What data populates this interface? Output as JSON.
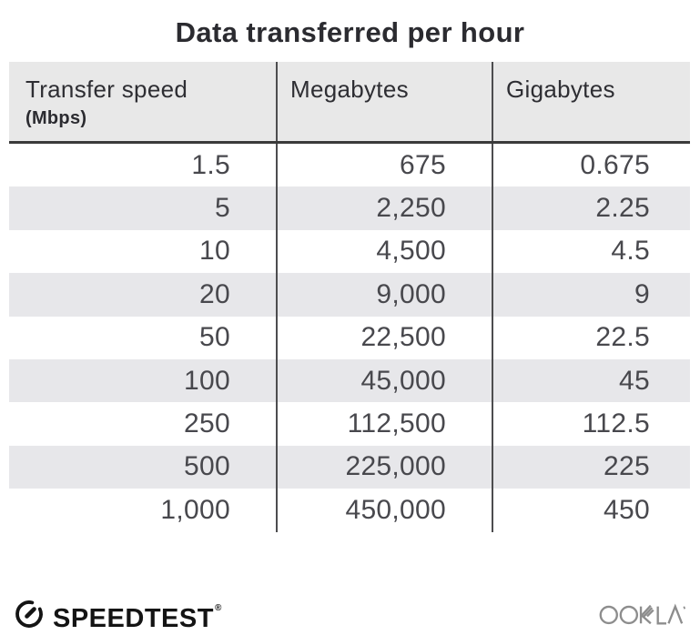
{
  "title": "Data transferred per hour",
  "table": {
    "columns": [
      {
        "label": "Transfer speed",
        "sublabel": "(Mbps)"
      },
      {
        "label": "Megabytes"
      },
      {
        "label": "Gigabytes"
      }
    ],
    "rows": [
      [
        "1.5",
        "675",
        "0.675"
      ],
      [
        "5",
        "2,250",
        "2.25"
      ],
      [
        "10",
        "4,500",
        "4.5"
      ],
      [
        "20",
        "9,000",
        "9"
      ],
      [
        "50",
        "22,500",
        "22.5"
      ],
      [
        "100",
        "45,000",
        "45"
      ],
      [
        "250",
        "112,500",
        "112.5"
      ],
      [
        "500",
        "225,000",
        "225"
      ],
      [
        "1,000",
        "450,000",
        "450"
      ]
    ]
  },
  "chart_data": {
    "type": "table",
    "title": "Data transferred per hour",
    "columns": [
      "Transfer speed (Mbps)",
      "Megabytes",
      "Gigabytes"
    ],
    "rows": [
      [
        1.5,
        675,
        0.675
      ],
      [
        5,
        2250,
        2.25
      ],
      [
        10,
        4500,
        4.5
      ],
      [
        20,
        9000,
        9
      ],
      [
        50,
        22500,
        22.5
      ],
      [
        100,
        45000,
        45
      ],
      [
        250,
        112500,
        112.5
      ],
      [
        500,
        225000,
        225
      ],
      [
        1000,
        450000,
        450
      ]
    ]
  },
  "footer": {
    "speedtest_label": "SPEEDTEST",
    "speedtest_trademark": "®",
    "speedtest_icon": "speedtest-gauge-icon",
    "ookla_label": "OOKLA",
    "ookla_icon": "ookla-logo"
  },
  "colors": {
    "title_text": "#2b2b30",
    "header_bg": "#e8e8e8",
    "stripe_bg": "#e7e7ea",
    "divider": "#4d4d4f",
    "header_rule": "#3a3a3a",
    "body_text": "#48484d",
    "speedtest_black": "#141414",
    "ookla_gray": "#8d8d8d"
  }
}
